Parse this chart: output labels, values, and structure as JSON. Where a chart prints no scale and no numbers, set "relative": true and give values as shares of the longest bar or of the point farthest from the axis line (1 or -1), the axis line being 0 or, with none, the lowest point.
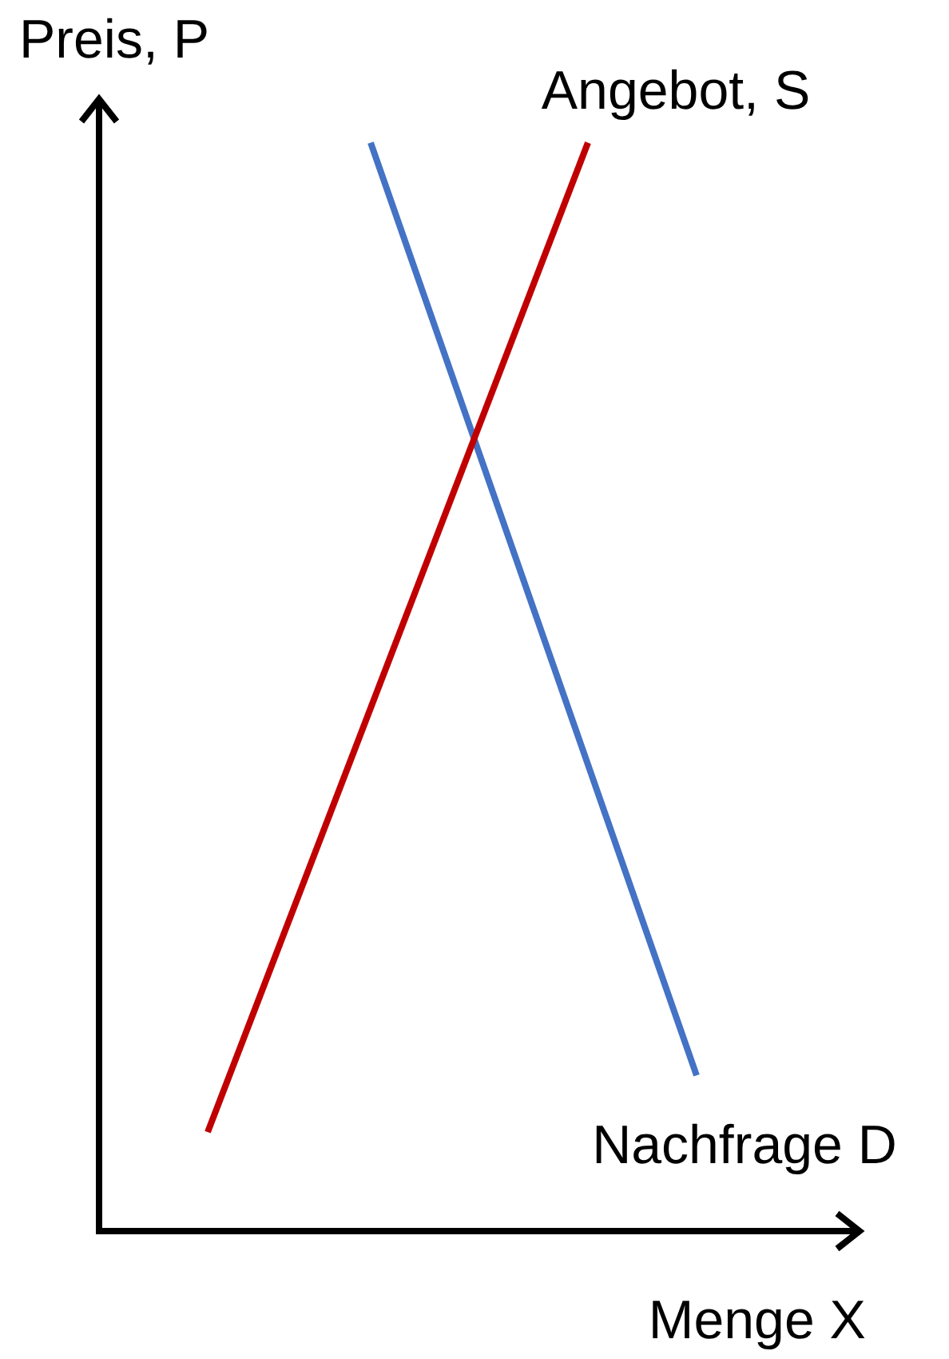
{
  "chart_data": {
    "type": "line",
    "relative": true,
    "xlabel": "Menge X",
    "ylabel": "Preis, P",
    "legend": false,
    "categories": [
      null,
      null,
      null,
      null,
      null,
      null,
      null,
      null,
      null,
      null,
      null,
      null,
      null,
      null,
      null,
      null,
      null,
      null,
      null,
      null,
      null,
      null,
      null,
      null,
      null,
      null,
      null,
      null,
      null
    ],
    "series": [
      {
        "name": "Angebot, S",
        "color": "#c00000",
        "values": [
          null,
          null,
          null,
          null,
          0.091,
          null,
          null,
          null,
          null,
          null,
          null,
          null,
          null,
          null,
          null,
          null,
          null,
          null,
          1,
          null,
          null,
          null,
          null,
          null,
          null,
          null,
          null,
          null,
          null
        ]
      },
      {
        "name": "Nachfrage D",
        "color": "#4472c4",
        "values": [
          null,
          null,
          null,
          null,
          null,
          null,
          null,
          null,
          null,
          null,
          1,
          null,
          null,
          null,
          null,
          null,
          null,
          null,
          null,
          null,
          null,
          null,
          0.143,
          null,
          null,
          null,
          null,
          null,
          null
        ]
      }
    ]
  }
}
